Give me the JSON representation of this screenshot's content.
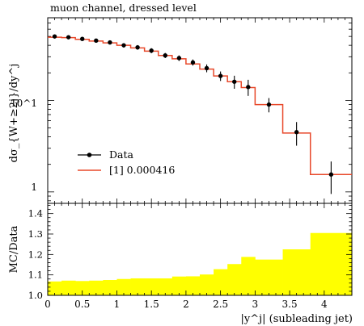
{
  "chart_data": [
    {
      "type": "line",
      "title": "muon channel, dressed level",
      "ylabel": "dσ_{W+≥2j}/dy^j",
      "yscale": "log",
      "ylim": [
        0.75,
        80
      ],
      "xlim": [
        0,
        4.4
      ],
      "ytick_labels": [
        "1",
        "10^1"
      ],
      "legend": {
        "placement": "lower-left",
        "entries": [
          {
            "label": "Data",
            "style": "points-with-errorbars",
            "color": "#000000"
          },
          {
            "label": "[1] 0.000416",
            "style": "line",
            "color": "#e8482a"
          }
        ]
      },
      "series": [
        {
          "name": "Data",
          "x": [
            0.1,
            0.3,
            0.5,
            0.7,
            0.9,
            1.1,
            1.3,
            1.5,
            1.7,
            1.9,
            2.1,
            2.3,
            2.5,
            2.7,
            2.9,
            3.2,
            3.6,
            4.1
          ],
          "y": [
            50,
            49,
            47,
            45,
            43,
            40,
            38,
            35,
            31,
            29,
            26,
            22.5,
            18.5,
            16,
            14,
            9,
            4.5,
            1.55
          ],
          "yerr": [
            2.5,
            2.4,
            2.3,
            2.3,
            2.2,
            2.2,
            2.2,
            2.2,
            2.0,
            2.0,
            2.0,
            2.2,
            2.2,
            2.6,
            2.8,
            1.6,
            1.3,
            0.6
          ]
        },
        {
          "name": "[1] 0.000416",
          "bin_edges": [
            0,
            0.2,
            0.4,
            0.6,
            0.8,
            1.0,
            1.2,
            1.4,
            1.6,
            1.8,
            2.0,
            2.2,
            2.4,
            2.6,
            2.8,
            3.0,
            3.4,
            3.8,
            4.4
          ],
          "values": [
            49,
            48.5,
            46.5,
            44.5,
            42.5,
            40,
            37.5,
            34.5,
            31,
            28.5,
            25,
            22,
            18.5,
            16,
            13.8,
            9,
            4.4,
            1.55
          ]
        }
      ]
    },
    {
      "type": "area",
      "ylabel": "MC/Data",
      "xlabel": "|y^j| (subleading jet)",
      "xlim": [
        0,
        4.4
      ],
      "ylim": [
        1.0,
        1.45
      ],
      "x_ticks": [
        0,
        0.5,
        1,
        1.5,
        2,
        2.5,
        3,
        3.5,
        4
      ],
      "x_tick_labels": [
        "0",
        "0.5",
        "1",
        "1.5",
        "2",
        "2.5",
        "3",
        "3.5",
        "4"
      ],
      "y_ticks": [
        1.0,
        1.1,
        1.2,
        1.3,
        1.4
      ],
      "y_tick_labels": [
        "1.0",
        "1.1",
        "1.2",
        "1.3",
        "1.4"
      ],
      "band": {
        "color": "#ffff00",
        "bin_edges": [
          0,
          0.2,
          0.4,
          0.6,
          0.8,
          1.0,
          1.2,
          1.4,
          1.6,
          1.8,
          2.0,
          2.2,
          2.4,
          2.6,
          2.8,
          3.0,
          3.4,
          3.8,
          4.4
        ],
        "upper": [
          1.068,
          1.072,
          1.07,
          1.072,
          1.075,
          1.08,
          1.083,
          1.083,
          1.083,
          1.092,
          1.093,
          1.102,
          1.128,
          1.153,
          1.188,
          1.175,
          1.225,
          1.305
        ],
        "lower": [
          1.0,
          1.0,
          1.0,
          1.0,
          1.0,
          1.0,
          1.0,
          1.0,
          1.0,
          1.0,
          1.0,
          1.0,
          1.0,
          1.0,
          1.0,
          1.0,
          1.0,
          1.0
        ]
      }
    }
  ]
}
